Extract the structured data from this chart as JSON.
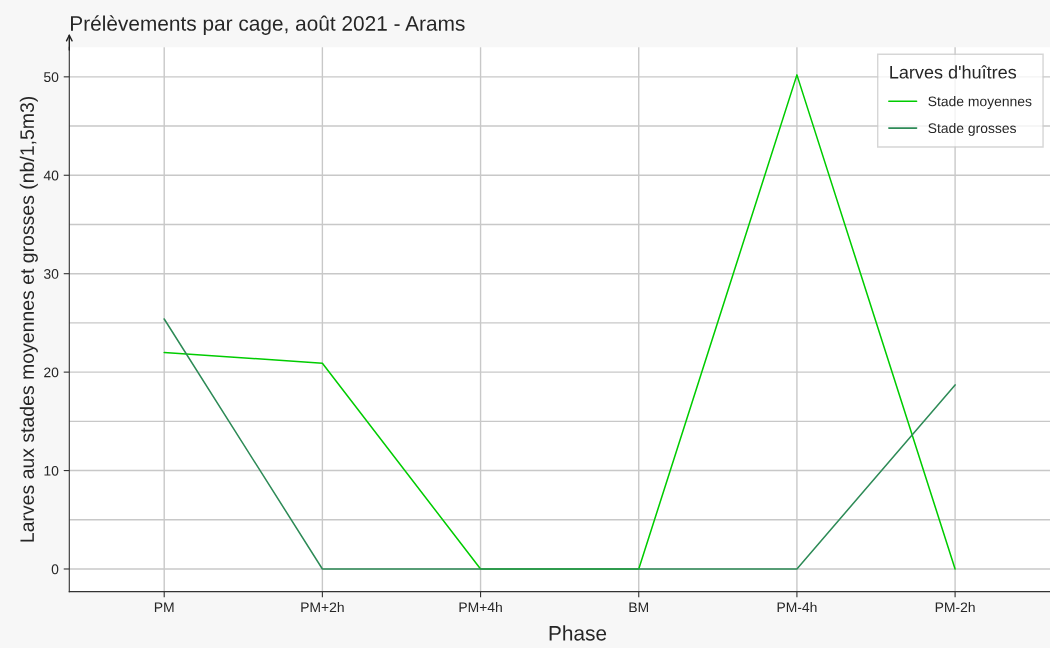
{
  "chart_data": {
    "type": "line",
    "title": "Prélèvements par cage, août 2021 - Arams",
    "xlabel": "Phase",
    "ylabel": "Larves aux stades moyennes et grosses (nb/1,5m3)",
    "legend_title": "Larves d'huîtres",
    "categories": [
      "PM",
      "PM+2h",
      "PM+4h",
      "BM",
      "PM-4h",
      "PM-2h"
    ],
    "series": [
      {
        "name": "Stade moyennes",
        "color": "#00cc00",
        "values": [
          22.0,
          20.9,
          0,
          0,
          50.2,
          0
        ]
      },
      {
        "name": "Stade grosses",
        "color": "#2e8b57",
        "values": [
          25.4,
          0,
          0,
          0,
          0,
          18.7
        ]
      }
    ],
    "ylim": [
      -2.3,
      53
    ],
    "yticks": [
      0,
      10,
      20,
      30,
      40,
      50
    ],
    "grid": true,
    "legend": "top right",
    "marker": "none",
    "line_style": "solid"
  }
}
